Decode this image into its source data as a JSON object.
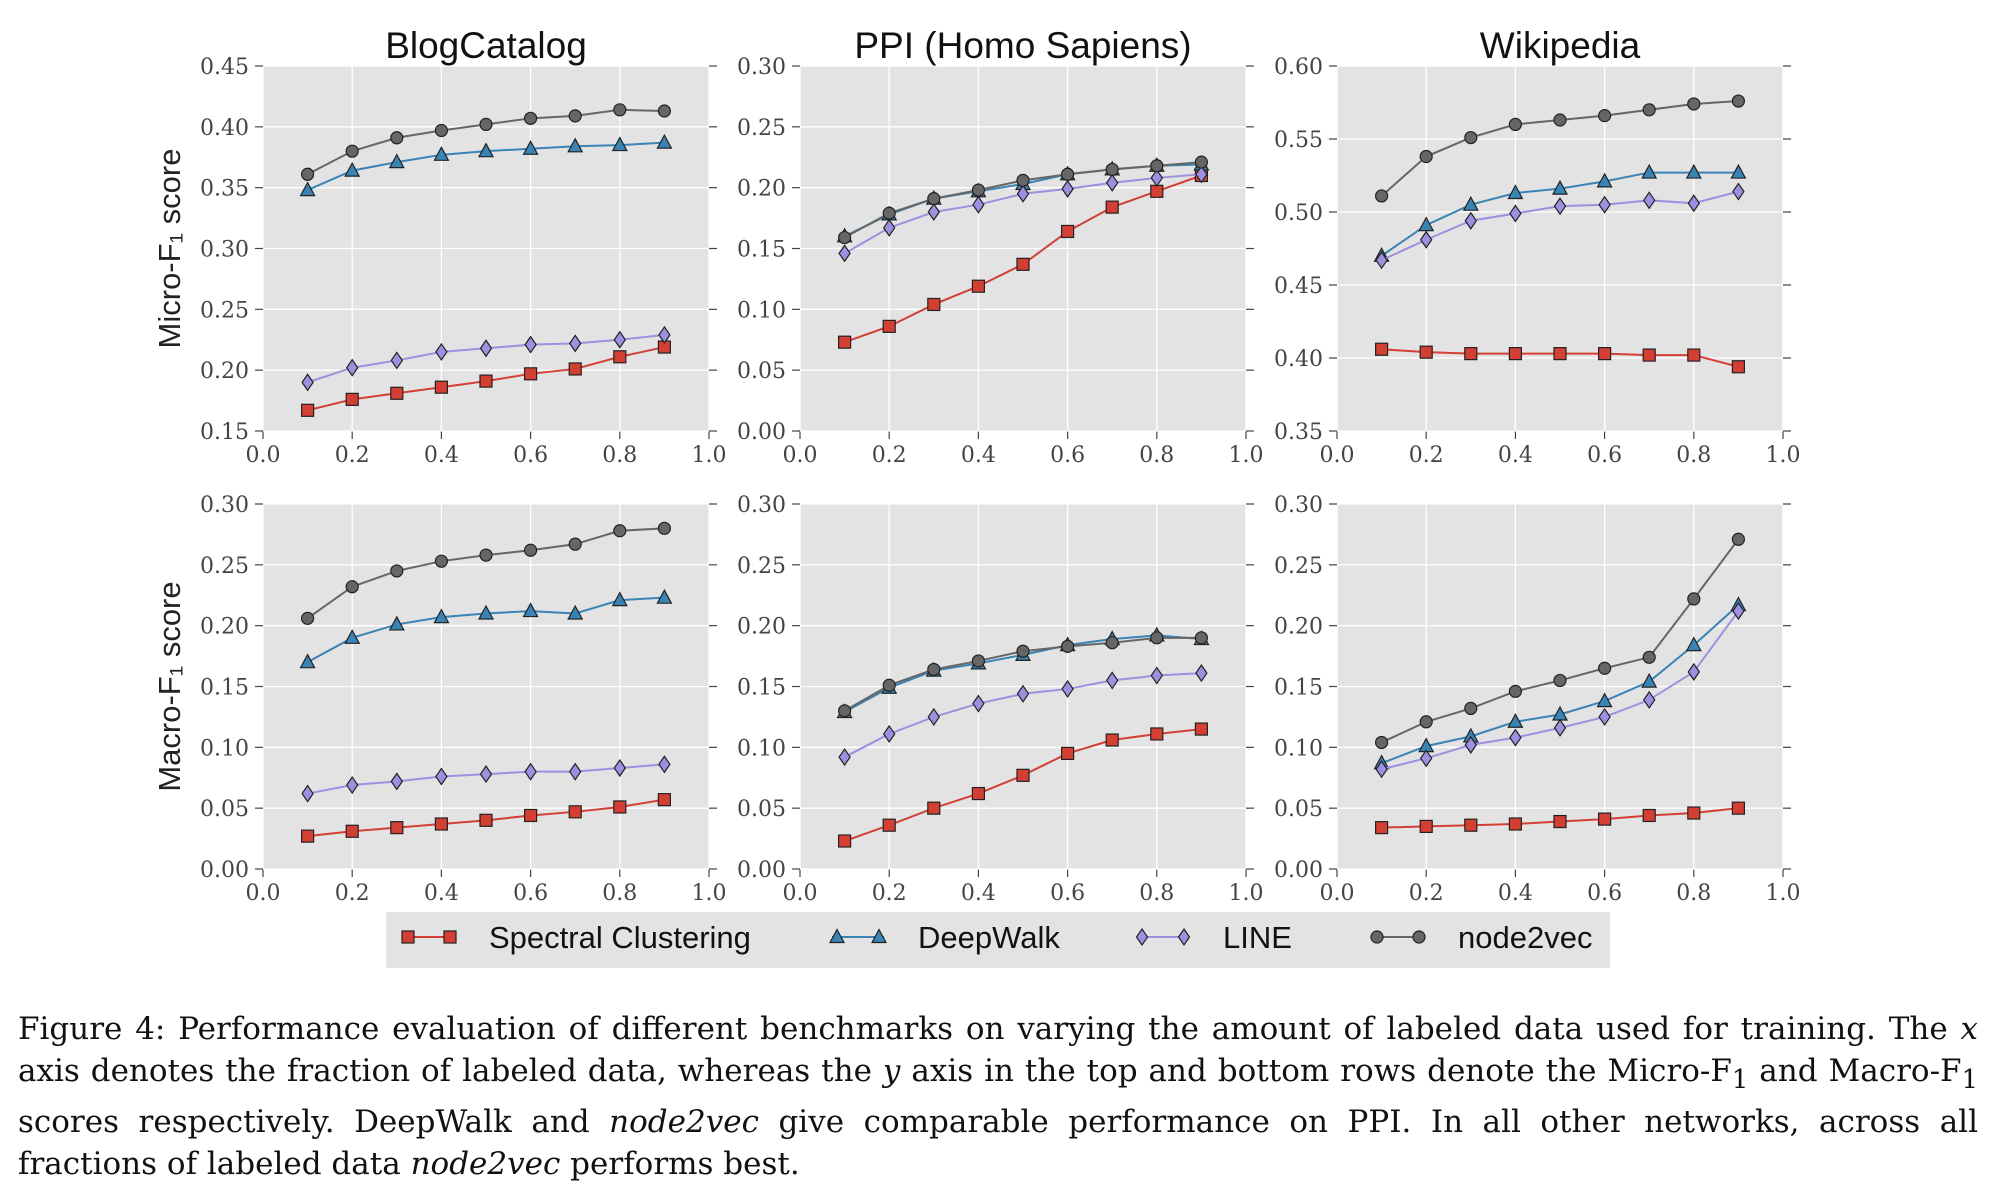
{
  "caption": {
    "label": "Figure 4:",
    "part1": " Performance evaluation of different benchmarks on varying the amount of labeled data used for training. The ",
    "xvar": "x",
    "part2": " axis denotes the fraction of labeled data, whereas the ",
    "yvar": "y",
    "part3": " axis in the top and bottom rows denote the Micro-F",
    "sub1": "1",
    "part4": " and Macro-F",
    "sub2": "1",
    "part5": " scores respectively. DeepWalk and ",
    "node2vec1": "node2vec",
    "part6": " give comparable performance on PPI. In all other networks, across all fractions of labeled data ",
    "node2vec2": "node2vec",
    "part7": " performs best."
  },
  "legend": {
    "entries": [
      {
        "name": "Spectral Clustering",
        "color": "#d43f34",
        "marker": "square"
      },
      {
        "name": "DeepWalk",
        "color": "#3a83b5",
        "marker": "triangle"
      },
      {
        "name": "LINE",
        "color": "#9e8fe0",
        "marker": "diamond"
      },
      {
        "name": "node2vec",
        "color": "#666666",
        "marker": "circle"
      }
    ]
  },
  "row_labels": [
    "Micro-F₁ score",
    "Macro-F₁ score"
  ],
  "x_values": [
    0.1,
    0.2,
    0.3,
    0.4,
    0.5,
    0.6,
    0.7,
    0.8,
    0.9
  ],
  "x_ticks": [
    "0.0",
    "0.2",
    "0.4",
    "0.6",
    "0.8",
    "1.0"
  ],
  "chart_data": [
    {
      "type": "line",
      "title": "BlogCatalog",
      "ylabel": "Micro-F₁ score",
      "xlim": [
        0,
        1
      ],
      "ylim": [
        0.15,
        0.45
      ],
      "yticks": [
        "0.15",
        "0.20",
        "0.25",
        "0.30",
        "0.35",
        "0.40",
        "0.45"
      ],
      "series": [
        {
          "name": "Spectral Clustering",
          "values": [
            0.167,
            0.176,
            0.181,
            0.186,
            0.191,
            0.197,
            0.201,
            0.211,
            0.219
          ]
        },
        {
          "name": "DeepWalk",
          "values": [
            0.348,
            0.364,
            0.371,
            0.377,
            0.38,
            0.382,
            0.384,
            0.385,
            0.387
          ]
        },
        {
          "name": "LINE",
          "values": [
            0.19,
            0.202,
            0.208,
            0.215,
            0.218,
            0.221,
            0.222,
            0.225,
            0.229
          ]
        },
        {
          "name": "node2vec",
          "values": [
            0.361,
            0.38,
            0.391,
            0.397,
            0.402,
            0.407,
            0.409,
            0.414,
            0.413
          ]
        }
      ]
    },
    {
      "type": "line",
      "title": "PPI (Homo Sapiens)",
      "ylabel": "",
      "xlim": [
        0,
        1
      ],
      "ylim": [
        0.0,
        0.3
      ],
      "yticks": [
        "0.00",
        "0.05",
        "0.10",
        "0.15",
        "0.20",
        "0.25",
        "0.30"
      ],
      "series": [
        {
          "name": "Spectral Clustering",
          "values": [
            0.073,
            0.086,
            0.104,
            0.119,
            0.137,
            0.164,
            0.184,
            0.197,
            0.21
          ]
        },
        {
          "name": "DeepWalk",
          "values": [
            0.16,
            0.178,
            0.191,
            0.197,
            0.203,
            0.211,
            0.215,
            0.218,
            0.219
          ]
        },
        {
          "name": "LINE",
          "values": [
            0.146,
            0.167,
            0.18,
            0.186,
            0.195,
            0.199,
            0.204,
            0.208,
            0.211
          ]
        },
        {
          "name": "node2vec",
          "values": [
            0.159,
            0.179,
            0.191,
            0.198,
            0.206,
            0.211,
            0.215,
            0.218,
            0.221
          ]
        }
      ]
    },
    {
      "type": "line",
      "title": "Wikipedia",
      "ylabel": "",
      "xlim": [
        0,
        1
      ],
      "ylim": [
        0.35,
        0.6
      ],
      "yticks": [
        "0.35",
        "0.40",
        "0.45",
        "0.50",
        "0.55",
        "0.60"
      ],
      "series": [
        {
          "name": "Spectral Clustering",
          "values": [
            0.406,
            0.404,
            0.403,
            0.403,
            0.403,
            0.403,
            0.402,
            0.402,
            0.394
          ]
        },
        {
          "name": "DeepWalk",
          "values": [
            0.47,
            0.491,
            0.505,
            0.513,
            0.516,
            0.521,
            0.527,
            0.527,
            0.527
          ]
        },
        {
          "name": "LINE",
          "values": [
            0.467,
            0.481,
            0.494,
            0.499,
            0.504,
            0.505,
            0.508,
            0.506,
            0.514
          ]
        },
        {
          "name": "node2vec",
          "values": [
            0.511,
            0.538,
            0.551,
            0.56,
            0.563,
            0.566,
            0.57,
            0.574,
            0.576
          ]
        }
      ]
    },
    {
      "type": "line",
      "title": "",
      "ylabel": "Macro-F₁ score",
      "xlim": [
        0,
        1
      ],
      "ylim": [
        0.0,
        0.3
      ],
      "yticks": [
        "0.00",
        "0.05",
        "0.10",
        "0.15",
        "0.20",
        "0.25",
        "0.30"
      ],
      "series": [
        {
          "name": "Spectral Clustering",
          "values": [
            0.027,
            0.031,
            0.034,
            0.037,
            0.04,
            0.044,
            0.047,
            0.051,
            0.057
          ]
        },
        {
          "name": "DeepWalk",
          "values": [
            0.17,
            0.19,
            0.201,
            0.207,
            0.21,
            0.212,
            0.21,
            0.221,
            0.223
          ]
        },
        {
          "name": "LINE",
          "values": [
            0.062,
            0.069,
            0.072,
            0.076,
            0.078,
            0.08,
            0.08,
            0.083,
            0.086
          ]
        },
        {
          "name": "node2vec",
          "values": [
            0.206,
            0.232,
            0.245,
            0.253,
            0.258,
            0.262,
            0.267,
            0.278,
            0.28
          ]
        }
      ]
    },
    {
      "type": "line",
      "title": "",
      "ylabel": "",
      "xlim": [
        0,
        1
      ],
      "ylim": [
        0.0,
        0.3
      ],
      "yticks": [
        "0.00",
        "0.05",
        "0.10",
        "0.15",
        "0.20",
        "0.25",
        "0.30"
      ],
      "series": [
        {
          "name": "Spectral Clustering",
          "values": [
            0.023,
            0.036,
            0.05,
            0.062,
            0.077,
            0.095,
            0.106,
            0.111,
            0.115
          ]
        },
        {
          "name": "DeepWalk",
          "values": [
            0.129,
            0.149,
            0.163,
            0.169,
            0.176,
            0.184,
            0.189,
            0.192,
            0.189
          ]
        },
        {
          "name": "LINE",
          "values": [
            0.092,
            0.111,
            0.125,
            0.136,
            0.144,
            0.148,
            0.155,
            0.159,
            0.161
          ]
        },
        {
          "name": "node2vec",
          "values": [
            0.13,
            0.151,
            0.164,
            0.171,
            0.179,
            0.183,
            0.186,
            0.19,
            0.19
          ]
        }
      ]
    },
    {
      "type": "line",
      "title": "",
      "ylabel": "",
      "xlim": [
        0,
        1
      ],
      "ylim": [
        0.0,
        0.3
      ],
      "yticks": [
        "0.00",
        "0.05",
        "0.10",
        "0.15",
        "0.20",
        "0.25",
        "0.30"
      ],
      "series": [
        {
          "name": "Spectral Clustering",
          "values": [
            0.034,
            0.035,
            0.036,
            0.037,
            0.039,
            0.041,
            0.044,
            0.046,
            0.05
          ]
        },
        {
          "name": "DeepWalk",
          "values": [
            0.087,
            0.101,
            0.109,
            0.121,
            0.127,
            0.138,
            0.154,
            0.184,
            0.217
          ]
        },
        {
          "name": "LINE",
          "values": [
            0.082,
            0.091,
            0.102,
            0.108,
            0.116,
            0.125,
            0.139,
            0.162,
            0.212
          ]
        },
        {
          "name": "node2vec",
          "values": [
            0.104,
            0.121,
            0.132,
            0.146,
            0.155,
            0.165,
            0.174,
            0.222,
            0.271
          ]
        }
      ]
    }
  ]
}
